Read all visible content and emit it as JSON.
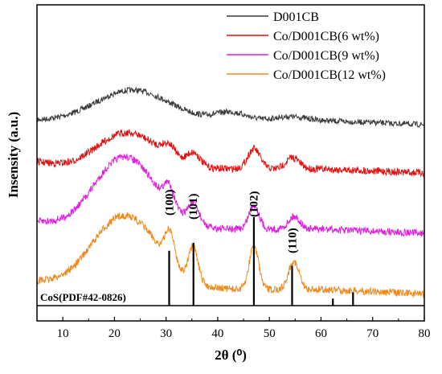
{
  "chart_data": {
    "type": "line",
    "xlabel": "2θ (⁰)",
    "ylabel": "Insensity (a.u.)",
    "xlim": [
      5,
      80
    ],
    "xticks": [
      10,
      20,
      30,
      40,
      50,
      60,
      70,
      80
    ],
    "y_ticks_shown": false,
    "legend_position": "top-right",
    "series": [
      {
        "name": "D001CB",
        "color": "#3a3a3a",
        "offset": 150,
        "features": [
          {
            "type": "hump",
            "x": 23.5,
            "height": 38,
            "width": 7
          },
          {
            "type": "hump",
            "x": 42.5,
            "height": 10,
            "width": 3
          },
          {
            "type": "hump",
            "x": 54,
            "height": 5,
            "width": 3
          }
        ]
      },
      {
        "name": "Co/D001CB(6 wt%)",
        "color": "#e11111",
        "offset": 210,
        "features": [
          {
            "type": "hump",
            "x": 22.5,
            "height": 45,
            "width": 6
          },
          {
            "type": "hump",
            "x": 30.6,
            "height": 14,
            "width": 1.2
          },
          {
            "type": "hump",
            "x": 35.3,
            "height": 16,
            "width": 1.3
          },
          {
            "type": "hump",
            "x": 47,
            "height": 25,
            "width": 1.2
          },
          {
            "type": "hump",
            "x": 54.5,
            "height": 14,
            "width": 1.3
          }
        ]
      },
      {
        "name": "Co/D001CB(9 wt%)",
        "color": "#e020e0",
        "offset": 285,
        "features": [
          {
            "type": "hump",
            "x": 22,
            "height": 90,
            "width": 6
          },
          {
            "type": "hump",
            "x": 30.6,
            "height": 25,
            "width": 1.0
          },
          {
            "type": "hump",
            "x": 35.3,
            "height": 25,
            "width": 1.1
          },
          {
            "type": "hump",
            "x": 47,
            "height": 30,
            "width": 1.0
          },
          {
            "type": "hump",
            "x": 54.8,
            "height": 16,
            "width": 1.1
          }
        ]
      },
      {
        "name": "Co/D001CB(12 wt%)",
        "color": "#ee8a1c",
        "offset": 360,
        "features": [
          {
            "type": "hump",
            "x": 22,
            "height": 92,
            "width": 6.5
          },
          {
            "type": "hump",
            "x": 30.7,
            "height": 38,
            "width": 0.9
          },
          {
            "type": "hump",
            "x": 35.3,
            "height": 42,
            "width": 0.9
          },
          {
            "type": "hump",
            "x": 47,
            "height": 55,
            "width": 0.9
          },
          {
            "type": "hump",
            "x": 54.7,
            "height": 35,
            "width": 1.0
          }
        ]
      }
    ],
    "peak_labels": [
      {
        "x": 30.6,
        "text": "(100)"
      },
      {
        "x": 35.2,
        "text": "(101)"
      },
      {
        "x": 46.9,
        "text": "(102)"
      },
      {
        "x": 54.4,
        "text": "(110)"
      }
    ],
    "reference": {
      "label": "CoS(PDF#42-0826)",
      "lines": [
        {
          "x": 30.6,
          "intensity": 0.62
        },
        {
          "x": 35.3,
          "intensity": 0.71
        },
        {
          "x": 47.0,
          "intensity": 1.0
        },
        {
          "x": 54.4,
          "intensity": 0.45
        },
        {
          "x": 62.3,
          "intensity": 0.08
        },
        {
          "x": 66.2,
          "intensity": 0.15
        }
      ]
    }
  }
}
